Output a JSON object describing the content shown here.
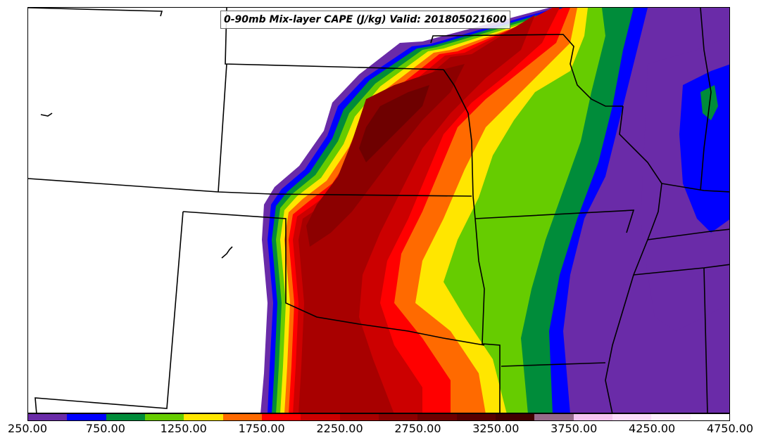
{
  "title": "0-90mb Mix-layer CAPE (J/kg) Valid: 201805021600",
  "colorbar": {
    "colors": [
      "#6a2ba8",
      "#0000ff",
      "#008c3a",
      "#66cc00",
      "#ffe600",
      "#ff6a00",
      "#ff0000",
      "#cc0000",
      "#a80000",
      "#8c0000",
      "#6e0000",
      "#560000",
      "#400000",
      "#956a8a",
      "#f5c4f0",
      "#fcdcfa",
      "#fef0fd",
      "#ffffff"
    ],
    "ticks": [
      "250.00",
      "750.00",
      "1250.00",
      "1750.00",
      "2250.00",
      "2750.00",
      "3250.00",
      "3750.00",
      "4250.00",
      "4750.00"
    ]
  },
  "icons": [
    "cape-contour-field",
    "state-boundary-lines",
    "color-scale-bar"
  ]
}
